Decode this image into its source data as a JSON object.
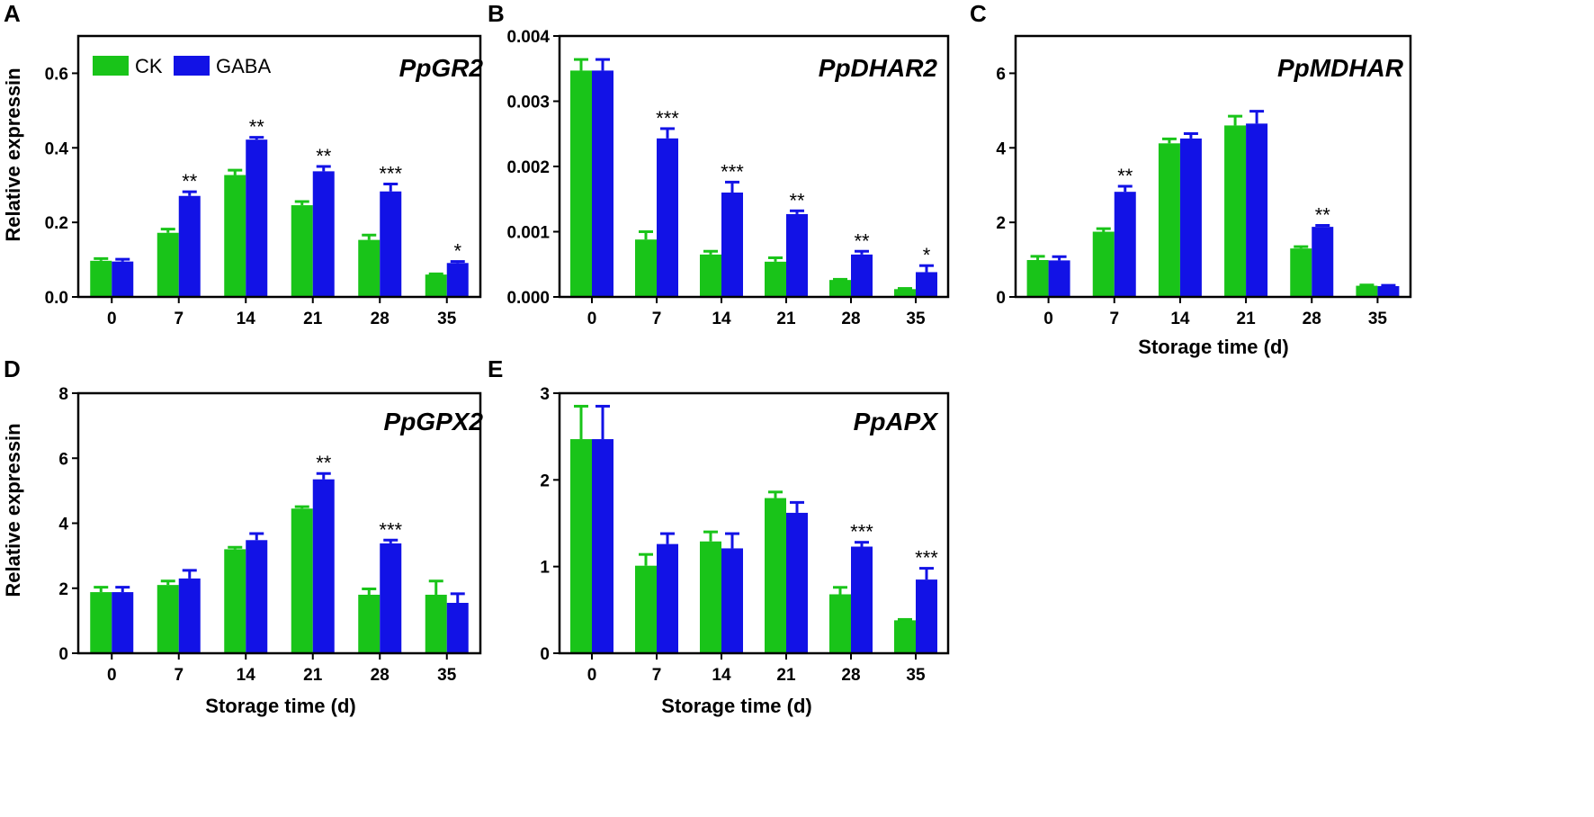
{
  "colors": {
    "CK": "#19c419",
    "GABA": "#1212e6",
    "axis": "#000000"
  },
  "legend": {
    "items": [
      {
        "label": "CK",
        "key": "CK"
      },
      {
        "label": "GABA",
        "key": "GABA"
      }
    ]
  },
  "chart_data": [
    {
      "panel": "A",
      "type": "bar",
      "gene": "PpGR2",
      "ylabel": "Relative expressin",
      "xlabel": "",
      "categories": [
        "0",
        "7",
        "14",
        "21",
        "28",
        "35"
      ],
      "ylim": [
        0,
        0.7
      ],
      "yticks": [
        0,
        0.2,
        0.4,
        0.6
      ],
      "ytick_labels": [
        "0.0",
        "0.2",
        "0.4",
        "0.6"
      ],
      "series": [
        {
          "name": "CK",
          "values": [
            0.097,
            0.172,
            0.327,
            0.246,
            0.153,
            0.06
          ],
          "errors": [
            0.006,
            0.01,
            0.013,
            0.01,
            0.013,
            0.002
          ]
        },
        {
          "name": "GABA",
          "values": [
            0.095,
            0.271,
            0.422,
            0.337,
            0.283,
            0.091
          ],
          "errors": [
            0.006,
            0.011,
            0.006,
            0.013,
            0.02,
            0.004
          ]
        }
      ],
      "significance": [
        "",
        "**",
        "**",
        "**",
        "***",
        "*"
      ]
    },
    {
      "panel": "B",
      "type": "bar",
      "gene": "PpDHAR2",
      "ylabel": "",
      "xlabel": "",
      "categories": [
        "0",
        "7",
        "14",
        "21",
        "28",
        "35"
      ],
      "ylim": [
        0,
        0.004
      ],
      "yticks": [
        0,
        0.001,
        0.002,
        0.003,
        0.004
      ],
      "ytick_labels": [
        "0.000",
        "0.001",
        "0.002",
        "0.003",
        "0.004"
      ],
      "series": [
        {
          "name": "CK",
          "values": [
            0.00347,
            0.00088,
            0.00065,
            0.00054,
            0.00026,
            0.00012
          ],
          "errors": [
            0.00017,
            0.00012,
            5e-05,
            6e-05,
            1e-05,
            1e-05
          ]
        },
        {
          "name": "GABA",
          "values": [
            0.00347,
            0.00243,
            0.0016,
            0.00127,
            0.00065,
            0.00038
          ],
          "errors": [
            0.00017,
            0.00015,
            0.00016,
            5e-05,
            5e-05,
            0.0001
          ]
        }
      ],
      "significance": [
        "",
        "***",
        "***",
        "**",
        "**",
        "*"
      ]
    },
    {
      "panel": "C",
      "type": "bar",
      "gene": "PpMDHAR",
      "ylabel": "",
      "xlabel": "Storage time (d)",
      "categories": [
        "0",
        "7",
        "14",
        "21",
        "28",
        "35"
      ],
      "ylim": [
        0,
        7
      ],
      "yticks": [
        0,
        2,
        4,
        6
      ],
      "ytick_labels": [
        "0",
        "2",
        "4",
        "6"
      ],
      "series": [
        {
          "name": "CK",
          "values": [
            0.99,
            1.75,
            4.12,
            4.6,
            1.3,
            0.3
          ],
          "errors": [
            0.1,
            0.08,
            0.12,
            0.25,
            0.05,
            0.02
          ]
        },
        {
          "name": "GABA",
          "values": [
            0.98,
            2.82,
            4.25,
            4.65,
            1.88,
            0.29
          ],
          "errors": [
            0.1,
            0.15,
            0.13,
            0.33,
            0.04,
            0.02
          ]
        }
      ],
      "significance": [
        "",
        "**",
        "",
        "",
        "**",
        ""
      ]
    },
    {
      "panel": "D",
      "type": "bar",
      "gene": "PpGPX2",
      "ylabel": "Relative expressin",
      "xlabel": "Storage time (d)",
      "categories": [
        "0",
        "7",
        "14",
        "21",
        "28",
        "35"
      ],
      "ylim": [
        0,
        8
      ],
      "yticks": [
        0,
        2,
        4,
        6,
        8
      ],
      "ytick_labels": [
        "0",
        "2",
        "4",
        "6",
        "8"
      ],
      "series": [
        {
          "name": "CK",
          "values": [
            1.88,
            2.1,
            3.2,
            4.45,
            1.8,
            1.8
          ],
          "errors": [
            0.15,
            0.12,
            0.06,
            0.06,
            0.18,
            0.42
          ]
        },
        {
          "name": "GABA",
          "values": [
            1.88,
            2.3,
            3.48,
            5.35,
            3.38,
            1.55
          ],
          "errors": [
            0.15,
            0.25,
            0.2,
            0.18,
            0.1,
            0.28
          ]
        }
      ],
      "significance": [
        "",
        "",
        "",
        "**",
        "***",
        ""
      ]
    },
    {
      "panel": "E",
      "type": "bar",
      "gene": "PpAPX",
      "ylabel": "",
      "xlabel": "Storage time (d)",
      "categories": [
        "0",
        "7",
        "14",
        "21",
        "28",
        "35"
      ],
      "ylim": [
        0,
        3
      ],
      "yticks": [
        0,
        1,
        2,
        3
      ],
      "ytick_labels": [
        "0",
        "1",
        "2",
        "3"
      ],
      "series": [
        {
          "name": "CK",
          "values": [
            2.47,
            1.01,
            1.29,
            1.79,
            0.68,
            0.38
          ],
          "errors": [
            0.38,
            0.13,
            0.11,
            0.07,
            0.08,
            0.01
          ]
        },
        {
          "name": "GABA",
          "values": [
            2.47,
            1.26,
            1.21,
            1.62,
            1.23,
            0.85
          ],
          "errors": [
            0.38,
            0.12,
            0.17,
            0.12,
            0.05,
            0.13
          ]
        }
      ],
      "significance": [
        "",
        "",
        "",
        "",
        "***",
        "***"
      ]
    }
  ]
}
